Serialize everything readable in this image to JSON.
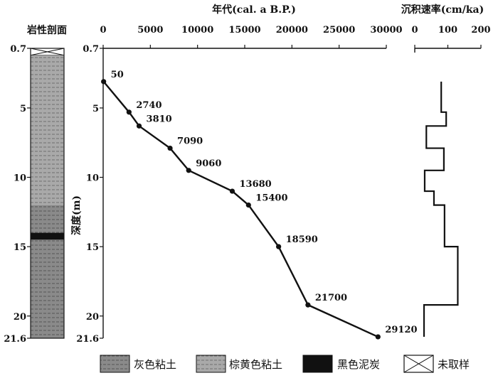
{
  "panels": {
    "lithology_title": "岩性剖面",
    "age_axis_title": "年代(cal. a B.P.)",
    "rate_axis_title": "沉积速率(cm/ka)",
    "depth_axis_title": "深度(m)"
  },
  "legend": [
    {
      "key": "grey_clay",
      "label": "灰色粘土"
    },
    {
      "key": "brown_clay",
      "label": "棕黄色粘土"
    },
    {
      "key": "black_peat",
      "label": "黑色泥炭"
    },
    {
      "key": "unsampled",
      "label": "未取样"
    }
  ],
  "lithology": {
    "layers": [
      {
        "type": "unsampled",
        "top": 0.7,
        "bottom": 1.2
      },
      {
        "type": "brown_clay",
        "top": 1.2,
        "bottom": 12.0
      },
      {
        "type": "grey_clay",
        "top": 12.0,
        "bottom": 14.0
      },
      {
        "type": "black_peat",
        "top": 14.0,
        "bottom": 14.5
      },
      {
        "type": "grey_clay",
        "top": 14.5,
        "bottom": 21.6
      }
    ]
  },
  "chart_data": [
    {
      "type": "line",
      "title": "",
      "xlabel": "年代(cal. a B.P.)",
      "ylabel": "深度(m)",
      "xlim": [
        0,
        30000
      ],
      "ylim": [
        0.7,
        21.6
      ],
      "x_ticks": [
        0,
        5000,
        10000,
        15000,
        20000,
        25000,
        30000
      ],
      "x_tick_labels": [
        "0",
        "5000",
        "10000",
        "15000",
        "20000",
        "25000",
        "30000"
      ],
      "y_ticks": [
        0.7,
        5,
        10,
        15,
        20,
        21.6
      ],
      "y_tick_labels": [
        "0.7",
        "5",
        "10",
        "15",
        "20",
        "21.6"
      ],
      "x_axis_position": "top",
      "grid": false,
      "points": [
        {
          "age": 50,
          "depth": 3.1,
          "label": "50"
        },
        {
          "age": 2740,
          "depth": 5.3,
          "label": "2740"
        },
        {
          "age": 3810,
          "depth": 6.3,
          "label": "3810"
        },
        {
          "age": 7090,
          "depth": 7.9,
          "label": "7090"
        },
        {
          "age": 9060,
          "depth": 9.5,
          "label": "9060"
        },
        {
          "age": 13680,
          "depth": 11.0,
          "label": "13680"
        },
        {
          "age": 15400,
          "depth": 12.0,
          "label": "15400"
        },
        {
          "age": 18590,
          "depth": 15.0,
          "label": "18590"
        },
        {
          "age": 21700,
          "depth": 19.2,
          "label": "21700"
        },
        {
          "age": 29120,
          "depth": 21.5,
          "label": "29120"
        }
      ]
    },
    {
      "type": "line",
      "title": "",
      "xlabel": "沉积速率(cm/ka)",
      "xlim": [
        0,
        200
      ],
      "ylim": [
        0.7,
        21.6
      ],
      "x_ticks": [
        0,
        100,
        200
      ],
      "x_tick_labels": [
        "0",
        "100",
        "200"
      ],
      "x_axis_position": "top",
      "grid": false,
      "step_profile": [
        {
          "depth": 3.1,
          "rate": 80
        },
        {
          "depth": 5.3,
          "rate": 80
        },
        {
          "depth": 5.3,
          "rate": 95
        },
        {
          "depth": 6.3,
          "rate": 95
        },
        {
          "depth": 6.3,
          "rate": 35
        },
        {
          "depth": 7.9,
          "rate": 35
        },
        {
          "depth": 7.9,
          "rate": 88
        },
        {
          "depth": 9.5,
          "rate": 88
        },
        {
          "depth": 9.5,
          "rate": 30
        },
        {
          "depth": 11.0,
          "rate": 30
        },
        {
          "depth": 11.0,
          "rate": 58
        },
        {
          "depth": 12.0,
          "rate": 58
        },
        {
          "depth": 12.0,
          "rate": 90
        },
        {
          "depth": 15.0,
          "rate": 90
        },
        {
          "depth": 15.0,
          "rate": 130
        },
        {
          "depth": 19.2,
          "rate": 130
        },
        {
          "depth": 19.2,
          "rate": 28
        },
        {
          "depth": 21.5,
          "rate": 28
        }
      ]
    }
  ]
}
